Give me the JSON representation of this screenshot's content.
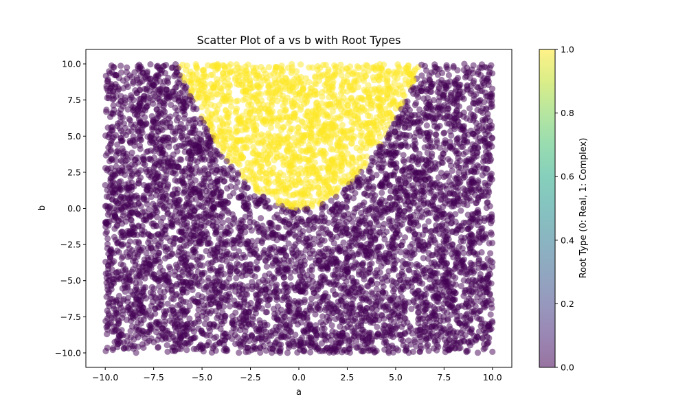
{
  "chart_data": {
    "type": "scatter",
    "title": "Scatter Plot of a vs b with Root Types",
    "xlabel": "a",
    "ylabel": "b",
    "xlim": [
      -11,
      11
    ],
    "ylim": [
      -11,
      11
    ],
    "x_ticks": [
      -10.0,
      -7.5,
      -5.0,
      -2.5,
      0.0,
      2.5,
      5.0,
      7.5,
      10.0
    ],
    "x_tick_labels": [
      "−10.0",
      "−7.5",
      "−5.0",
      "−2.5",
      "0.0",
      "2.5",
      "5.0",
      "7.5",
      "10.0"
    ],
    "y_ticks": [
      -10.0,
      -7.5,
      -5.0,
      -2.5,
      0.0,
      2.5,
      5.0,
      7.5,
      10.0
    ],
    "y_tick_labels": [
      "−10.0",
      "−7.5",
      "−5.0",
      "−2.5",
      "0.0",
      "2.5",
      "5.0",
      "7.5",
      "10.0"
    ],
    "x_range_of_points": [
      -10,
      10
    ],
    "y_range_of_points": [
      -10,
      10
    ],
    "classification_rule": "complex when a^2 < 4b",
    "marker_alpha": 0.5,
    "colormap": "viridis",
    "category_colors": {
      "0": "#440154",
      "1": "#fde725"
    },
    "colorbar": {
      "label": "Root Type (0: Real, 1: Complex)",
      "range": [
        0,
        1
      ],
      "ticks": [
        0.0,
        0.2,
        0.4,
        0.6,
        0.8,
        1.0
      ],
      "tick_labels": [
        "0.0",
        "0.2",
        "0.4",
        "0.6",
        "0.8",
        "1.0"
      ]
    },
    "grid": false,
    "legend": "none"
  }
}
